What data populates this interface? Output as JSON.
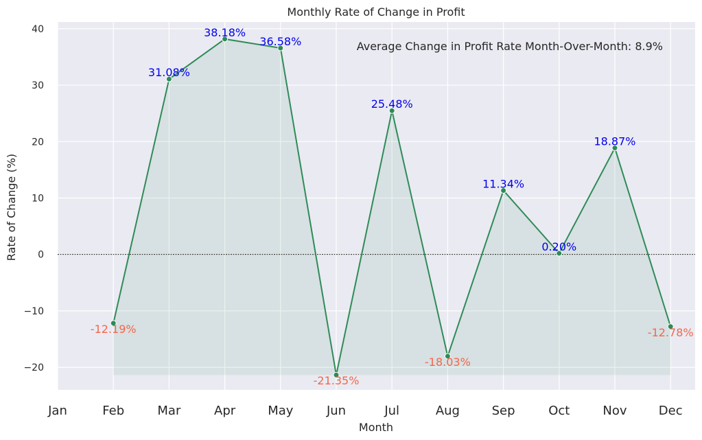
{
  "chart_data": {
    "type": "line",
    "title": "Monthly Rate of Change in Profit",
    "xlabel": "Month",
    "ylabel": "Rate of Change (%)",
    "categories": [
      "Jan",
      "Feb",
      "Mar",
      "Apr",
      "May",
      "Jun",
      "Jul",
      "Aug",
      "Sep",
      "Oct",
      "Nov",
      "Dec"
    ],
    "series": [
      {
        "values": [
          null,
          -12.19,
          31.08,
          38.18,
          36.58,
          -21.35,
          25.48,
          -18.03,
          11.34,
          0.2,
          18.87,
          -12.78
        ],
        "color": "#2e8b57"
      }
    ],
    "data_labels": [
      "",
      "-12.19%",
      "31.08%",
      "38.18%",
      "36.58%",
      "-21.35%",
      "25.48%",
      "-18.03%",
      "11.34%",
      "0.20%",
      "18.87%",
      "-12.78%"
    ],
    "positive_label_color": "#0000ee",
    "negative_label_color": "#f4664a",
    "fill_color": "#2e8b57",
    "ylim": [
      -24,
      41.2
    ],
    "yticks": [
      40,
      30,
      20,
      10,
      0,
      -10,
      -20
    ],
    "ytick_labels": [
      "40",
      "30",
      "20",
      "10",
      "0",
      "−10",
      "−20"
    ],
    "zero_line": true,
    "grid": true,
    "background": "#eaeaf2",
    "annotation": "Average Change in Profit Rate Month-Over-Month: 8.9%"
  }
}
